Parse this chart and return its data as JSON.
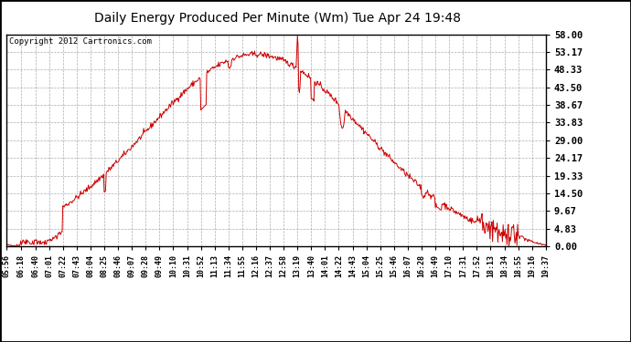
{
  "title": "Daily Energy Produced Per Minute (Wm) Tue Apr 24 19:48",
  "copyright": "Copyright 2012 Cartronics.com",
  "bg_color": "#000000",
  "plot_bg_color": "#ffffff",
  "line_color": "#cc0000",
  "grid_color": "#999999",
  "title_color": "#000000",
  "title_bg": "#ffffff",
  "yticks": [
    0.0,
    4.83,
    9.67,
    14.5,
    19.33,
    24.17,
    29.0,
    33.83,
    38.67,
    43.5,
    48.33,
    53.17,
    58.0
  ],
  "ytick_labels": [
    "0.00",
    "4.83",
    "9.67",
    "14.50",
    "19.33",
    "24.17",
    "29.00",
    "33.83",
    "38.67",
    "43.50",
    "48.33",
    "53.17",
    "58.00"
  ],
  "ymax": 58.0,
  "ymin": 0.0,
  "xtick_labels": [
    "05:56",
    "06:18",
    "06:40",
    "07:01",
    "07:22",
    "07:43",
    "08:04",
    "08:25",
    "08:46",
    "09:07",
    "09:28",
    "09:49",
    "10:10",
    "10:31",
    "10:52",
    "11:13",
    "11:34",
    "11:55",
    "12:16",
    "12:37",
    "12:58",
    "13:19",
    "13:40",
    "14:01",
    "14:22",
    "14:43",
    "15:04",
    "15:25",
    "15:46",
    "16:07",
    "16:28",
    "16:49",
    "17:10",
    "17:31",
    "17:52",
    "18:13",
    "18:34",
    "18:55",
    "19:16",
    "19:37"
  ]
}
